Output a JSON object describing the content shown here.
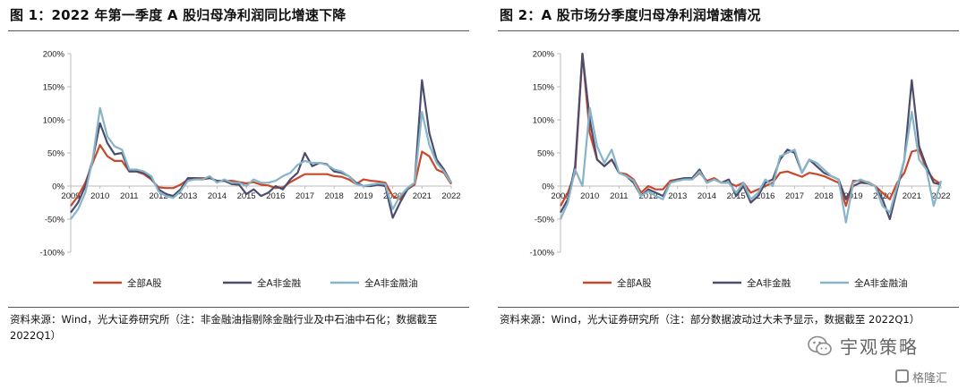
{
  "left": {
    "title": "图 1：2022 年第一季度 A 股归母净利润同比增速下降",
    "source": "资料来源：Wind，光大证券研究所（注：非金融油指剔除金融行业及中石油中石化；数据截至 2022Q1）"
  },
  "right": {
    "title": "图 2：A 股市场分季度归母净利润增速情况",
    "source": "资料来源：Wind，光大证券研究所（注：部分数据波动过大未予显示，数据截至 2022Q1）"
  },
  "watermark": {
    "text": "宇观策略"
  },
  "logo": {
    "text": "格隆汇"
  },
  "colors": {
    "all_a": "#c9472a",
    "non_fin": "#4a4d6e",
    "non_fin_oil": "#86b4c8"
  },
  "chart_data": [
    {
      "type": "line",
      "title": "",
      "ylim": [
        -100,
        200
      ],
      "y_ticks": [
        "200%",
        "150%",
        "100%",
        "50%",
        "0%",
        "-50%",
        "-100%"
      ],
      "y_tick_values": [
        200,
        150,
        100,
        50,
        0,
        -50,
        -100
      ],
      "x_ticks": [
        "2009",
        "2010",
        "2011",
        "2012",
        "2013",
        "2014",
        "2015",
        "2016",
        "2017",
        "2018",
        "2019",
        "2020",
        "2021",
        "2022"
      ],
      "legend_position": "bottom",
      "grid": false,
      "x": [
        "2009Q1",
        "2009Q2",
        "2009Q3",
        "2009Q4",
        "2010Q1",
        "2010Q2",
        "2010Q3",
        "2010Q4",
        "2011Q1",
        "2011Q2",
        "2011Q3",
        "2011Q4",
        "2012Q1",
        "2012Q2",
        "2012Q3",
        "2012Q4",
        "2013Q1",
        "2013Q2",
        "2013Q3",
        "2013Q4",
        "2014Q1",
        "2014Q2",
        "2014Q3",
        "2014Q4",
        "2015Q1",
        "2015Q2",
        "2015Q3",
        "2015Q4",
        "2016Q1",
        "2016Q2",
        "2016Q3",
        "2016Q4",
        "2017Q1",
        "2017Q2",
        "2017Q3",
        "2017Q4",
        "2018Q1",
        "2018Q2",
        "2018Q3",
        "2018Q4",
        "2019Q1",
        "2019Q2",
        "2019Q3",
        "2019Q4",
        "2020Q1",
        "2020Q2",
        "2020Q3",
        "2020Q4",
        "2021Q1",
        "2021Q2",
        "2021Q3",
        "2021Q4",
        "2022Q1"
      ],
      "series": [
        {
          "name": "全部A股",
          "color": "#c9472a",
          "values": [
            -30,
            -15,
            5,
            35,
            62,
            45,
            38,
            38,
            22,
            22,
            18,
            10,
            -2,
            -3,
            -3,
            2,
            10,
            12,
            12,
            12,
            8,
            8,
            8,
            6,
            4,
            6,
            2,
            1,
            -3,
            -2,
            6,
            12,
            18,
            18,
            18,
            18,
            15,
            14,
            10,
            3,
            10,
            8,
            7,
            5,
            -15,
            -20,
            -5,
            2,
            52,
            45,
            25,
            20,
            3
          ]
        },
        {
          "name": "全A非金融",
          "color": "#4a4d6e",
          "values": [
            -40,
            -25,
            0,
            40,
            95,
            65,
            48,
            50,
            22,
            22,
            20,
            12,
            -5,
            -12,
            -15,
            -5,
            12,
            12,
            10,
            12,
            8,
            8,
            3,
            2,
            -12,
            -5,
            -15,
            -10,
            0,
            -5,
            10,
            20,
            50,
            30,
            35,
            33,
            22,
            20,
            15,
            5,
            0,
            0,
            2,
            0,
            -48,
            -25,
            -5,
            5,
            160,
            80,
            40,
            25,
            5
          ]
        },
        {
          "name": "全A非金融油",
          "color": "#86b4c8",
          "values": [
            -50,
            -35,
            -10,
            40,
            118,
            75,
            60,
            55,
            25,
            25,
            22,
            15,
            -8,
            -15,
            -18,
            -8,
            8,
            10,
            10,
            15,
            5,
            10,
            5,
            5,
            0,
            10,
            5,
            5,
            8,
            15,
            20,
            32,
            38,
            35,
            35,
            32,
            25,
            22,
            15,
            3,
            0,
            2,
            4,
            3,
            -35,
            -15,
            -3,
            5,
            112,
            62,
            35,
            22,
            5
          ]
        }
      ]
    },
    {
      "type": "line",
      "title": "",
      "ylim": [
        -100,
        200
      ],
      "y_ticks": [
        "200%",
        "150%",
        "100%",
        "50%",
        "0%",
        "-50%",
        "-100%"
      ],
      "y_tick_values": [
        200,
        150,
        100,
        50,
        0,
        -50,
        -100
      ],
      "x_ticks": [
        "2009",
        "2010",
        "2011",
        "2012",
        "2013",
        "2014",
        "2015",
        "2016",
        "2017",
        "2018",
        "2019",
        "2020",
        "2021",
        "2022"
      ],
      "legend_position": "bottom",
      "grid": false,
      "x": [
        "2009Q1",
        "2009Q2",
        "2009Q3",
        "2009Q4",
        "2010Q1",
        "2010Q2",
        "2010Q3",
        "2010Q4",
        "2011Q1",
        "2011Q2",
        "2011Q3",
        "2011Q4",
        "2012Q1",
        "2012Q2",
        "2012Q3",
        "2012Q4",
        "2013Q1",
        "2013Q2",
        "2013Q3",
        "2013Q4",
        "2014Q1",
        "2014Q2",
        "2014Q3",
        "2014Q4",
        "2015Q1",
        "2015Q2",
        "2015Q3",
        "2015Q4",
        "2016Q1",
        "2016Q2",
        "2016Q3",
        "2016Q4",
        "2017Q1",
        "2017Q2",
        "2017Q3",
        "2017Q4",
        "2018Q1",
        "2018Q2",
        "2018Q3",
        "2018Q4",
        "2019Q1",
        "2019Q2",
        "2019Q3",
        "2019Q4",
        "2020Q1",
        "2020Q2",
        "2020Q3",
        "2020Q4",
        "2021Q1",
        "2021Q2",
        "2021Q3",
        "2021Q4",
        "2022Q1"
      ],
      "series": [
        {
          "name": "全部A股",
          "color": "#c9472a",
          "values": [
            -30,
            -10,
            20,
            200,
            80,
            40,
            30,
            40,
            20,
            18,
            10,
            -10,
            0,
            -5,
            -5,
            8,
            10,
            12,
            10,
            20,
            8,
            12,
            5,
            5,
            0,
            5,
            -10,
            -5,
            0,
            5,
            20,
            22,
            18,
            14,
            20,
            18,
            15,
            10,
            5,
            -30,
            8,
            8,
            6,
            0,
            -10,
            -20,
            5,
            20,
            52,
            55,
            25,
            10,
            3
          ]
        },
        {
          "name": "全A非金融",
          "color": "#4a4d6e",
          "values": [
            -40,
            -20,
            30,
            200,
            100,
            40,
            30,
            40,
            20,
            15,
            5,
            -15,
            -5,
            -10,
            -15,
            5,
            10,
            12,
            12,
            25,
            5,
            10,
            5,
            10,
            -15,
            0,
            -25,
            -15,
            5,
            10,
            40,
            55,
            50,
            20,
            40,
            30,
            20,
            15,
            10,
            -20,
            0,
            5,
            4,
            0,
            -20,
            -50,
            -5,
            40,
            160,
            60,
            30,
            5,
            2
          ]
        },
        {
          "name": "全A非金融油",
          "color": "#86b4c8",
          "values": [
            -50,
            -25,
            25,
            0,
            118,
            60,
            35,
            55,
            20,
            15,
            8,
            -15,
            -8,
            -15,
            -20,
            5,
            8,
            10,
            10,
            22,
            5,
            10,
            5,
            5,
            -10,
            5,
            -20,
            -10,
            10,
            0,
            45,
            50,
            55,
            20,
            40,
            35,
            25,
            15,
            10,
            -55,
            5,
            10,
            5,
            0,
            -30,
            -40,
            0,
            40,
            112,
            40,
            25,
            -30,
            8
          ]
        }
      ]
    }
  ]
}
